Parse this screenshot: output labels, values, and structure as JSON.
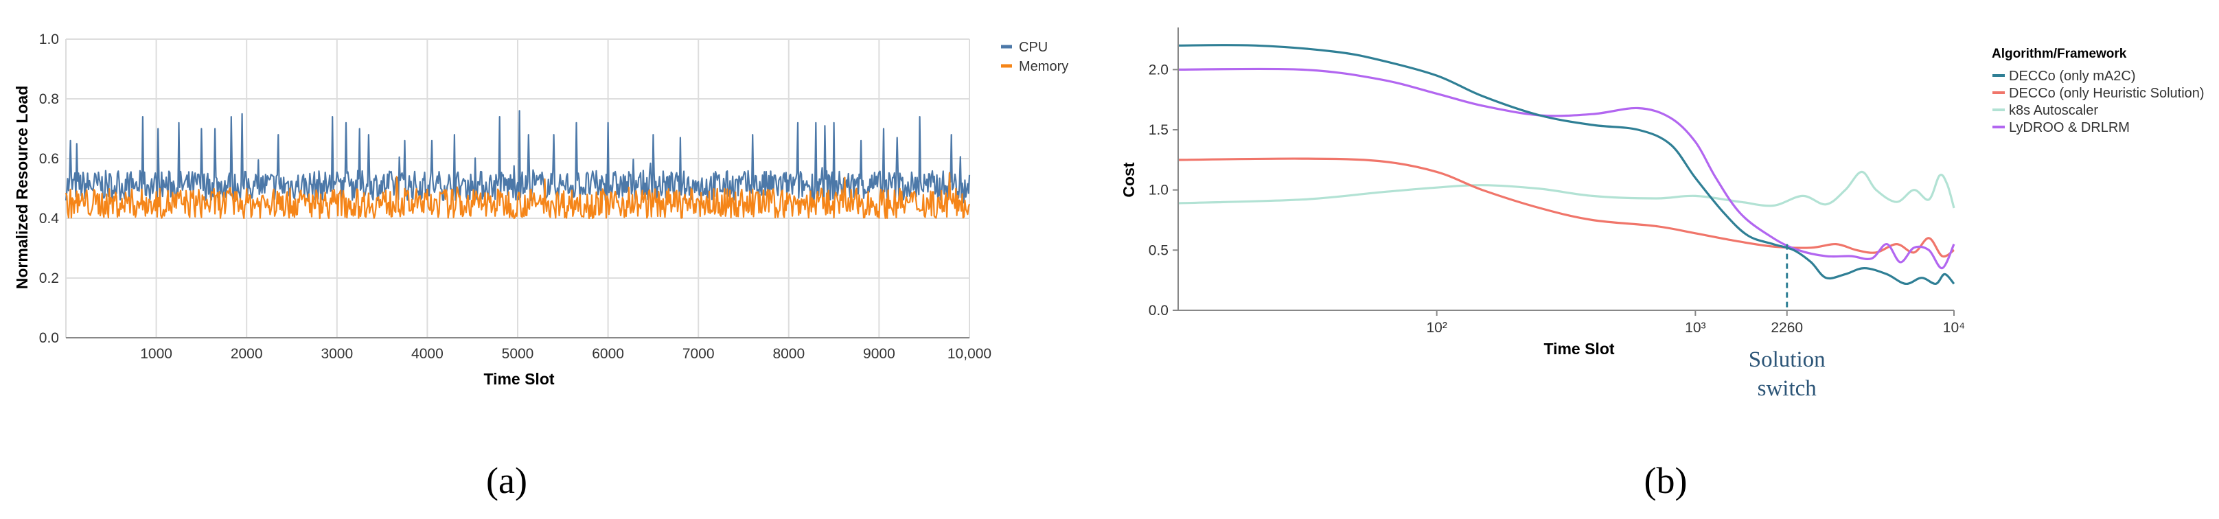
{
  "chart_data": [
    {
      "type": "line",
      "panel": "a",
      "caption": "(a)",
      "xlabel": "Time Slot",
      "ylabel": "Normalized Resource Load",
      "xlim": [
        0,
        10000
      ],
      "ylim": [
        0,
        1.0
      ],
      "x_ticks": [
        1000,
        2000,
        3000,
        4000,
        5000,
        6000,
        7000,
        8000,
        9000,
        10000
      ],
      "x_tick_labels": [
        "1000",
        "2000",
        "3000",
        "4000",
        "5000",
        "6000",
        "7000",
        "8000",
        "9000",
        "10,000"
      ],
      "y_ticks": [
        0.0,
        0.2,
        0.4,
        0.6,
        0.8,
        1.0
      ],
      "y_tick_labels": [
        "0.0",
        "0.2",
        "0.4",
        "0.6",
        "0.8",
        "1.0"
      ],
      "grid": true,
      "legend": "top-right",
      "series": [
        {
          "name": "CPU",
          "color": "#4c78a8",
          "base": 0.51,
          "noise": 0.05,
          "spikes": [
            [
              50,
              0.66
            ],
            [
              120,
              0.65
            ],
            [
              850,
              0.74
            ],
            [
              1020,
              0.7
            ],
            [
              1250,
              0.72
            ],
            [
              1500,
              0.7
            ],
            [
              1650,
              0.7
            ],
            [
              1830,
              0.74
            ],
            [
              1950,
              0.75
            ],
            [
              2350,
              0.68
            ],
            [
              2950,
              0.74
            ],
            [
              3100,
              0.72
            ],
            [
              3250,
              0.7
            ],
            [
              3350,
              0.68
            ],
            [
              3750,
              0.66
            ],
            [
              4050,
              0.66
            ],
            [
              4300,
              0.68
            ],
            [
              4800,
              0.74
            ],
            [
              5020,
              0.76
            ],
            [
              5120,
              0.68
            ],
            [
              5400,
              0.68
            ],
            [
              5650,
              0.72
            ],
            [
              6000,
              0.72
            ],
            [
              6500,
              0.68
            ],
            [
              6800,
              0.67
            ],
            [
              7600,
              0.68
            ],
            [
              8100,
              0.72
            ],
            [
              8300,
              0.72
            ],
            [
              8400,
              0.71
            ],
            [
              8500,
              0.72
            ],
            [
              8800,
              0.66
            ],
            [
              9050,
              0.7
            ],
            [
              9200,
              0.67
            ],
            [
              9450,
              0.74
            ],
            [
              9800,
              0.68
            ]
          ]
        },
        {
          "name": "Memory",
          "color": "#f58518",
          "base": 0.45,
          "noise": 0.05,
          "spikes": []
        }
      ]
    },
    {
      "type": "line",
      "panel": "b",
      "caption": "(b)",
      "xlabel": "Time Slot",
      "ylabel": "Cost",
      "x_scale": "log",
      "xlim": [
        10,
        10000
      ],
      "ylim": [
        0,
        2.35
      ],
      "x_ticks": [
        100,
        1000,
        2260,
        10000
      ],
      "x_tick_labels": [
        "10²",
        "10³",
        "2260",
        "10⁴"
      ],
      "y_ticks": [
        0.0,
        0.5,
        1.0,
        1.5,
        2.0
      ],
      "y_tick_labels": [
        "0.0",
        "0.5",
        "1.0",
        "1.5",
        "2.0"
      ],
      "grid": false,
      "legend_title": "Algorithm/Framework",
      "legend": "right",
      "annotation": {
        "x": 2260,
        "line1": "Solution",
        "line2": "switch"
      },
      "series": [
        {
          "name": "DECCo (only mA2C)",
          "color": "#2f7f95",
          "points": [
            [
              10,
              2.2
            ],
            [
              20,
              2.2
            ],
            [
              40,
              2.15
            ],
            [
              60,
              2.08
            ],
            [
              100,
              1.95
            ],
            [
              150,
              1.78
            ],
            [
              250,
              1.62
            ],
            [
              400,
              1.54
            ],
            [
              600,
              1.5
            ],
            [
              800,
              1.38
            ],
            [
              1000,
              1.1
            ],
            [
              1300,
              0.8
            ],
            [
              1600,
              0.62
            ],
            [
              2000,
              0.55
            ],
            [
              2400,
              0.5
            ],
            [
              2800,
              0.4
            ],
            [
              3200,
              0.27
            ],
            [
              3800,
              0.3
            ],
            [
              4500,
              0.35
            ],
            [
              5500,
              0.3
            ],
            [
              6500,
              0.22
            ],
            [
              7500,
              0.27
            ],
            [
              8500,
              0.22
            ],
            [
              9200,
              0.3
            ],
            [
              10000,
              0.22
            ]
          ]
        },
        {
          "name": "DECCo (only Heuristic Solution)",
          "color": "#f0756a",
          "points": [
            [
              10,
              1.25
            ],
            [
              30,
              1.26
            ],
            [
              60,
              1.24
            ],
            [
              100,
              1.15
            ],
            [
              150,
              1.0
            ],
            [
              250,
              0.85
            ],
            [
              400,
              0.75
            ],
            [
              700,
              0.7
            ],
            [
              1000,
              0.64
            ],
            [
              1400,
              0.58
            ],
            [
              2000,
              0.53
            ],
            [
              2800,
              0.52
            ],
            [
              3500,
              0.55
            ],
            [
              4200,
              0.5
            ],
            [
              5000,
              0.48
            ],
            [
              6000,
              0.55
            ],
            [
              7000,
              0.48
            ],
            [
              8000,
              0.6
            ],
            [
              9000,
              0.45
            ],
            [
              10000,
              0.5
            ]
          ]
        },
        {
          "name": "k8s Autoscaler",
          "color": "#b2e2d4",
          "points": [
            [
              10,
              0.89
            ],
            [
              30,
              0.92
            ],
            [
              60,
              0.98
            ],
            [
              100,
              1.02
            ],
            [
              150,
              1.04
            ],
            [
              250,
              1.01
            ],
            [
              400,
              0.95
            ],
            [
              700,
              0.93
            ],
            [
              1000,
              0.95
            ],
            [
              1500,
              0.9
            ],
            [
              2000,
              0.87
            ],
            [
              2600,
              0.95
            ],
            [
              3200,
              0.88
            ],
            [
              3800,
              1.0
            ],
            [
              4400,
              1.15
            ],
            [
              5000,
              1.0
            ],
            [
              6000,
              0.9
            ],
            [
              7000,
              1.0
            ],
            [
              8000,
              0.92
            ],
            [
              8800,
              1.12
            ],
            [
              9400,
              1.05
            ],
            [
              10000,
              0.85
            ]
          ]
        },
        {
          "name": "LyDROO & DRLRM",
          "color": "#b266f0",
          "points": [
            [
              10,
              2.0
            ],
            [
              30,
              2.0
            ],
            [
              60,
              1.92
            ],
            [
              100,
              1.8
            ],
            [
              150,
              1.7
            ],
            [
              250,
              1.62
            ],
            [
              400,
              1.63
            ],
            [
              600,
              1.68
            ],
            [
              800,
              1.6
            ],
            [
              1000,
              1.4
            ],
            [
              1200,
              1.1
            ],
            [
              1500,
              0.8
            ],
            [
              2000,
              0.6
            ],
            [
              2500,
              0.5
            ],
            [
              3200,
              0.45
            ],
            [
              4000,
              0.45
            ],
            [
              4800,
              0.43
            ],
            [
              5500,
              0.55
            ],
            [
              6200,
              0.4
            ],
            [
              7000,
              0.52
            ],
            [
              8000,
              0.5
            ],
            [
              9000,
              0.35
            ],
            [
              10000,
              0.55
            ]
          ]
        }
      ]
    }
  ]
}
